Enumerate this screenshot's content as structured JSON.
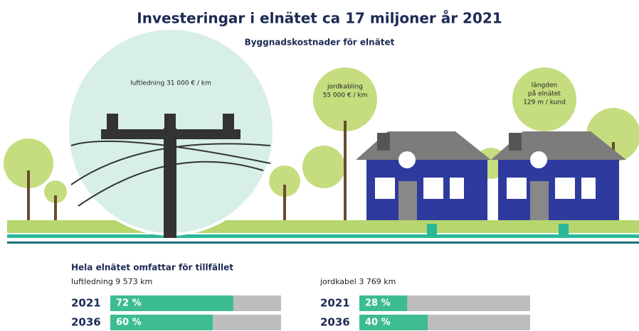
{
  "header": {
    "title": "Investeringar i elnätet ca 17 miljoner år 2021",
    "subtitle": "Byggnadskostnader för elnätet"
  },
  "labels": {
    "overhead": "luftledning 31 000 € / km",
    "cable": [
      "jordkabling",
      "55 000 € / km"
    ],
    "length": [
      "längden",
      "på elnätet",
      "129 m / kund"
    ]
  },
  "network": {
    "title": "Hela elnätet omfattar för tillfället",
    "groups": [
      {
        "name": "luftledning 9 573 km",
        "rows": [
          {
            "year": "2021",
            "value": 72,
            "label": "72 %"
          },
          {
            "year": "2036",
            "value": 60,
            "label": "60 %"
          }
        ]
      },
      {
        "name": "jordkabel 3 769 km",
        "rows": [
          {
            "year": "2021",
            "value": 28,
            "label": "28 %"
          },
          {
            "year": "2036",
            "value": 40,
            "label": "40 %"
          }
        ]
      }
    ]
  }
}
